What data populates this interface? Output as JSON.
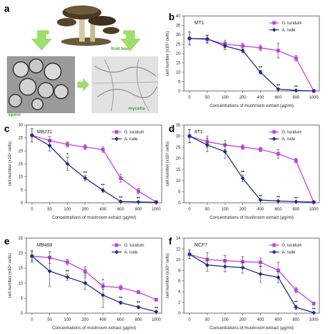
{
  "illustration": {
    "letter": "a",
    "labels": {
      "fruit_body": "fruit body",
      "spore": "spore",
      "mycelia": "mycelia"
    },
    "arrow_color": "#9fe06a"
  },
  "colors": {
    "g_lucidum": "#c040e0",
    "a_rude": "#1c2a8a"
  },
  "chart_data": [
    {
      "letter": "b",
      "type": "line",
      "title": "MT1",
      "xlabel": "Concentrations of mushroom extract (μg/ml)",
      "ylabel": "cell number (x10⁴ cells)",
      "categories": [
        "0",
        "50",
        "100",
        "200",
        "400",
        "600",
        "800",
        "1000"
      ],
      "ylim": [
        0,
        40
      ],
      "yticks": [
        0,
        5,
        10,
        15,
        20,
        25,
        30,
        35,
        40
      ],
      "series": [
        {
          "name": "G. lucidum",
          "values": [
            28,
            27.5,
            25,
            24,
            23,
            21.5,
            17.5,
            0
          ],
          "errors": [
            3.5,
            2,
            2,
            1.5,
            1.5,
            4,
            1.5,
            0
          ]
        },
        {
          "name": "A. rude",
          "values": [
            28,
            27.8,
            24,
            21.5,
            10,
            1,
            0.3,
            0
          ],
          "errors": [
            3.5,
            2,
            2,
            1,
            1,
            0.3,
            0.2,
            0
          ]
        }
      ],
      "stars": [
        {
          "i": 4,
          "text": "**"
        },
        {
          "i": 5,
          "text": "**"
        },
        {
          "i": 6,
          "text": "**"
        }
      ]
    },
    {
      "letter": "c",
      "type": "line",
      "title": "MB231",
      "xlabel": "Concentrations of mushroom extract (μg/ml)",
      "ylabel": "cell number (x10⁴ cells)",
      "categories": [
        "0",
        "50",
        "100",
        "200",
        "400",
        "600",
        "800",
        "1000"
      ],
      "ylim": [
        0,
        30
      ],
      "yticks": [
        0,
        5,
        10,
        15,
        20,
        25,
        30
      ],
      "series": [
        {
          "name": "G. lucidum",
          "values": [
            26,
            24,
            22.5,
            21.5,
            20.5,
            9.5,
            4.5,
            0.3
          ],
          "errors": [
            2.5,
            1.5,
            1,
            1,
            1,
            1.5,
            1,
            0.2
          ]
        },
        {
          "name": "A. rude",
          "values": [
            26,
            22,
            15,
            9.5,
            4.8,
            0.5,
            0.3,
            0.2
          ],
          "errors": [
            2.5,
            2,
            2.5,
            1,
            0.8,
            0.3,
            0.2,
            0.1
          ]
        }
      ],
      "stars": [
        {
          "i": 2,
          "text": "*"
        },
        {
          "i": 3,
          "text": "**"
        },
        {
          "i": 4,
          "text": "**"
        },
        {
          "i": 5,
          "text": "**"
        },
        {
          "i": 6,
          "text": "**"
        }
      ]
    },
    {
      "letter": "d",
      "type": "line",
      "title": "4T1",
      "xlabel": "Concentrations of mushroom extract (μg/ml)",
      "ylabel": "cell number (x10⁴ cells)",
      "categories": [
        "0",
        "50",
        "100",
        "200",
        "400",
        "600",
        "800",
        "1000"
      ],
      "ylim": [
        0,
        35
      ],
      "yticks": [
        0,
        5,
        10,
        15,
        20,
        25,
        30,
        35
      ],
      "series": [
        {
          "name": "G. lucidum",
          "values": [
            30,
            27.5,
            26,
            25,
            24,
            22,
            19,
            0.3
          ],
          "errors": [
            3,
            2.5,
            2,
            1,
            1,
            2,
            1,
            0.2
          ]
        },
        {
          "name": "A. rude",
          "values": [
            30,
            26,
            23,
            11,
            1.2,
            0.8,
            0.5,
            0.3
          ],
          "errors": [
            3,
            3,
            3,
            1.5,
            0.3,
            0.3,
            0.2,
            0.1
          ]
        }
      ],
      "stars": [
        {
          "i": 3,
          "text": "**"
        },
        {
          "i": 4,
          "text": "**"
        },
        {
          "i": 5,
          "text": "**"
        },
        {
          "i": 6,
          "text": "**"
        }
      ]
    },
    {
      "letter": "e",
      "type": "line",
      "title": "MB468",
      "xlabel": "Concentrations of mushroom extract (μg/ml)",
      "ylabel": "cell number (x10⁴ cells)",
      "categories": [
        "0",
        "50",
        "100",
        "200",
        "400",
        "600",
        "800",
        "1000"
      ],
      "ylim": [
        0,
        25
      ],
      "yticks": [
        0,
        5,
        10,
        15,
        20,
        25
      ],
      "series": [
        {
          "name": "G. lucidum",
          "values": [
            19,
            18.5,
            17,
            14,
            9,
            8.5,
            7,
            4.5
          ],
          "errors": [
            1.5,
            2,
            1,
            1.5,
            1,
            0.8,
            0.5,
            0.5
          ]
        },
        {
          "name": "A. rude",
          "values": [
            19,
            14,
            12,
            10,
            6,
            3.5,
            2,
            0.5
          ],
          "errors": [
            2,
            5,
            1,
            2,
            4,
            0.5,
            0.5,
            0.2
          ]
        }
      ],
      "stars": [
        {
          "i": 2,
          "text": "**"
        },
        {
          "i": 3,
          "text": "*"
        },
        {
          "i": 4,
          "text": "*"
        },
        {
          "i": 5,
          "text": "**"
        },
        {
          "i": 6,
          "text": "**"
        },
        {
          "i": 7,
          "text": "**"
        }
      ]
    },
    {
      "letter": "f",
      "type": "line",
      "title": "MCF7",
      "xlabel": "Concentrations of mushroom extract (μg/ml)",
      "ylabel": "cell number (x10⁴ cells)",
      "categories": [
        "0",
        "50",
        "100",
        "200",
        "400",
        "600",
        "800",
        "1000"
      ],
      "ylim": [
        0,
        14
      ],
      "yticks": [
        0,
        2,
        4,
        6,
        8,
        10,
        12,
        14
      ],
      "series": [
        {
          "name": "G. lucidum",
          "values": [
            11,
            10,
            9.8,
            9.6,
            9.5,
            8,
            4.3,
            1.8
          ],
          "errors": [
            0.8,
            1.3,
            1,
            1,
            0.8,
            1.5,
            0.5,
            0.3
          ]
        },
        {
          "name": "A. rude",
          "values": [
            11,
            9,
            8.7,
            8.5,
            7.3,
            6.7,
            1.1,
            0.1
          ],
          "errors": [
            0.8,
            1.2,
            1,
            1,
            1.5,
            1,
            0.4,
            0.1
          ]
        }
      ],
      "stars": [
        {
          "i": 6,
          "text": "**"
        },
        {
          "i": 7,
          "text": "**"
        }
      ]
    }
  ]
}
